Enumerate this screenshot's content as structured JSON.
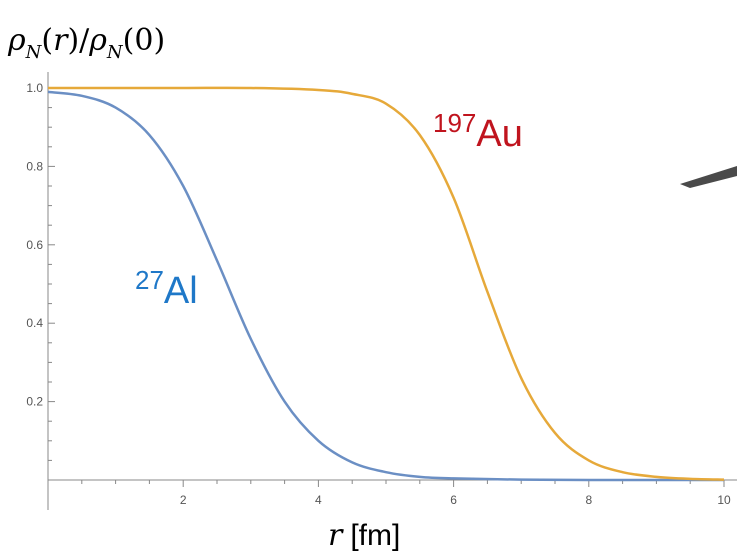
{
  "chart_data": {
    "type": "line",
    "title": "",
    "ylabel": "ρ_N(r)/ρ_N(0)",
    "xlabel": "r [fm]",
    "xlim": [
      0,
      10
    ],
    "ylim": [
      0,
      1.0
    ],
    "x_ticks": [
      2,
      4,
      6,
      8,
      10
    ],
    "y_ticks": [
      0.2,
      0.4,
      0.6,
      0.8,
      1.0
    ],
    "x_tick_labels": [
      "2",
      "4",
      "6",
      "8",
      "10"
    ],
    "y_tick_labels": [
      "0.2",
      "0.4",
      "0.6",
      "0.8",
      "1.0"
    ],
    "grid": false,
    "series": [
      {
        "name": "27Al",
        "label_mass": "27",
        "label_element": "Al",
        "line_color": "#6b8fc4",
        "label_color": "#1f78c8",
        "x": [
          0,
          0.5,
          1.0,
          1.5,
          2.0,
          2.5,
          3.0,
          3.5,
          4.0,
          4.5,
          5.0,
          5.5,
          6.0,
          7.0,
          8.0,
          10.0
        ],
        "y": [
          0.99,
          0.98,
          0.95,
          0.88,
          0.75,
          0.56,
          0.36,
          0.2,
          0.1,
          0.045,
          0.02,
          0.008,
          0.004,
          0.001,
          0.0,
          0.0
        ]
      },
      {
        "name": "197Au",
        "label_mass": "197",
        "label_element": "Au",
        "line_color": "#e6a93a",
        "label_color": "#c0141e",
        "x": [
          0,
          1.0,
          2.0,
          3.0,
          4.0,
          4.5,
          5.0,
          5.5,
          6.0,
          6.5,
          7.0,
          7.5,
          8.0,
          8.5,
          9.0,
          9.5,
          10.0
        ],
        "y": [
          1.0,
          1.0,
          1.0,
          1.0,
          0.995,
          0.985,
          0.96,
          0.88,
          0.72,
          0.48,
          0.26,
          0.12,
          0.05,
          0.02,
          0.008,
          0.003,
          0.001
        ]
      }
    ]
  },
  "annotation": {
    "pointer": "dark-gray-pointer-arrow"
  }
}
